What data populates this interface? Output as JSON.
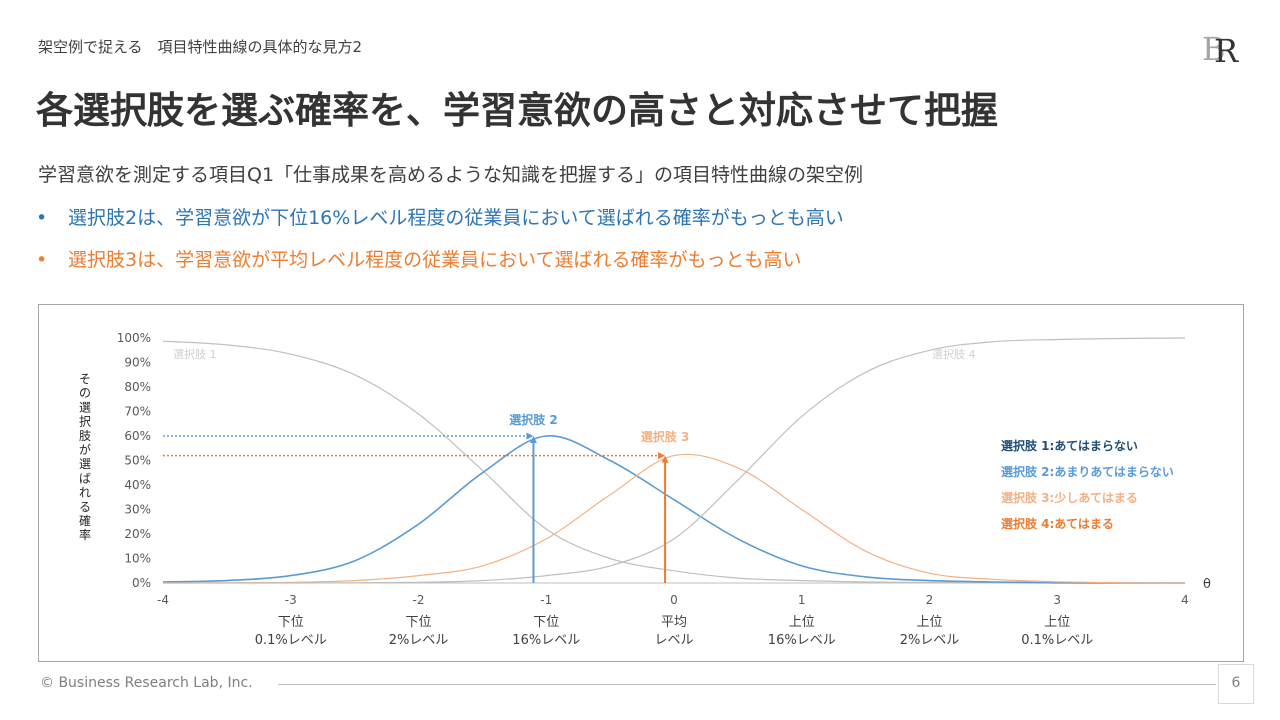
{
  "header": {
    "breadcrumb": "架空例で捉える　項目特性曲線の具体的な見方2",
    "logo_text": "BR",
    "title": "各選択肢を選ぶ確率を、学習意欲の高さと対応させて把握",
    "subtitle": "学習意欲を測定する項目Q1「仕事成果を高めるような知識を把握する」の項目特性曲線の架空例"
  },
  "bullets": [
    {
      "marker": "•",
      "text": "選択肢2は、学習意欲が下位16%レベル程度の従業員において選ばれる確率がもっとも高い",
      "color": "#2E75B6"
    },
    {
      "marker": "•",
      "text": "選択肢3は、学習意欲が平均レベル程度の従業員において選ばれる確率がもっとも高い",
      "color": "#ED7D31"
    }
  ],
  "footer": {
    "copyright": "© Business Research Lab, Inc.",
    "page_number": "6"
  },
  "chart_data": {
    "type": "line",
    "xlabel": "θ",
    "ylabel": "その選択肢が選ばれる確率",
    "xlim": [
      -4,
      4
    ],
    "ylim": [
      0,
      100
    ],
    "x_ticks": [
      "-4",
      "-3",
      "-2",
      "-1",
      "0",
      "1",
      "2",
      "3",
      "4"
    ],
    "y_ticks": [
      "0%",
      "10%",
      "20%",
      "30%",
      "40%",
      "50%",
      "60%",
      "70%",
      "80%",
      "90%",
      "100%"
    ],
    "x_sublabels": [
      {
        "x": -3,
        "line1": "下位",
        "line2": "0.1%レベル"
      },
      {
        "x": -2,
        "line1": "下位",
        "line2": "2%レベル"
      },
      {
        "x": -1,
        "line1": "下位",
        "line2": "16%レベル"
      },
      {
        "x": 0,
        "line1": "平均",
        "line2": "レベル"
      },
      {
        "x": 1,
        "line1": "上位",
        "line2": "16%レベル"
      },
      {
        "x": 2,
        "line1": "上位",
        "line2": "2%レベル"
      },
      {
        "x": 3,
        "line1": "上位",
        "line2": "0.1%レベル"
      }
    ],
    "x": [
      -4,
      -3.5,
      -3,
      -2.5,
      -2,
      -1.5,
      -1,
      -0.5,
      0,
      0.5,
      1,
      1.5,
      2,
      2.5,
      3,
      3.5,
      4
    ],
    "series": [
      {
        "name": "選択肢 1:あてはまらない",
        "short": "選択肢 1",
        "color": "#BFBFBF",
        "legend_color": "#1F4E79",
        "values": [
          98.7,
          97.2,
          93.4,
          85.0,
          69.0,
          46.0,
          22.0,
          10.0,
          5.0,
          2.0,
          1.0,
          0.4,
          0.2,
          0.1,
          0.0,
          0.0,
          0.0
        ]
      },
      {
        "name": "選択肢 2:あまりあてはまらない",
        "short": "選択肢 2",
        "color": "#5B9BD5",
        "legend_color": "#5B9BD5",
        "values": [
          0.4,
          1.0,
          3.0,
          9.0,
          24.0,
          45.0,
          60.0,
          50.0,
          34.0,
          18.0,
          7.0,
          2.5,
          1.0,
          0.4,
          0.1,
          0.0,
          0.0
        ]
      },
      {
        "name": "選択肢 3:少しあてはまる",
        "short": "選択肢 3",
        "color": "#F4B183",
        "legend_color": "#F4B183",
        "values": [
          0.0,
          0.1,
          0.3,
          1.0,
          3.0,
          7.0,
          18.0,
          36.0,
          52.0,
          47.0,
          30.0,
          13.0,
          4.0,
          1.5,
          0.5,
          0.1,
          0.0
        ]
      },
      {
        "name": "選択肢 4:あてはまる",
        "short": "選択肢 4",
        "color": "#BFBFBF",
        "legend_color": "#ED7D31",
        "values": [
          0.0,
          0.0,
          0.0,
          0.1,
          0.3,
          1.0,
          3.0,
          7.0,
          18.0,
          42.0,
          68.0,
          86.0,
          95.0,
          98.5,
          99.4,
          99.8,
          100.0
        ]
      }
    ],
    "highlights": [
      {
        "series": "選択肢 2",
        "x": -1.1,
        "y": 60,
        "color": "#5B9BD5"
      },
      {
        "series": "選択肢 3",
        "x": -0.07,
        "y": 52,
        "color": "#ED7D31"
      }
    ]
  }
}
